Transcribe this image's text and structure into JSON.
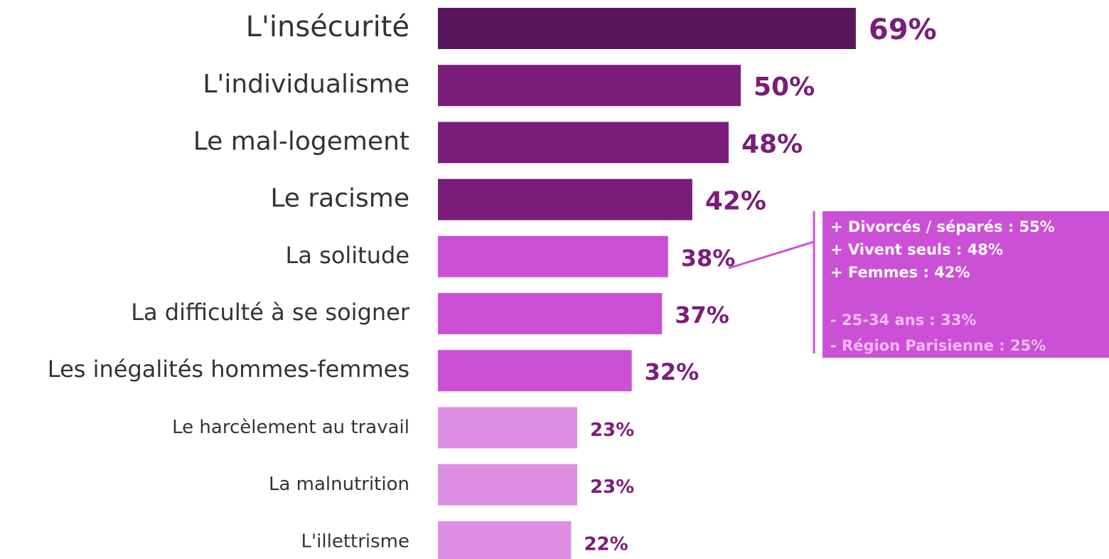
{
  "chart_data": {
    "type": "bar",
    "orientation": "horizontal",
    "categories": [
      "L'insécurité",
      "L'individualisme",
      "Le mal-logement",
      "Le racisme",
      "La solitude",
      "La difficulté à se soigner",
      "Les inégalités hommes-femmes",
      "Le harcèlement au travail",
      "La malnutrition",
      "L'illettrisme"
    ],
    "values": [
      69,
      50,
      48,
      42,
      38,
      37,
      32,
      23,
      23,
      22
    ],
    "value_labels": [
      "69%",
      "50%",
      "48%",
      "42%",
      "38%",
      "37%",
      "32%",
      "23%",
      "23%",
      "22%"
    ],
    "colors": [
      "#58175b",
      "#7a1d7a",
      "#7a1d7a",
      "#7a1d7a",
      "#cc50d6",
      "#cc50d6",
      "#cc50d6",
      "#de8ee3",
      "#de8ee3",
      "#de8ee3"
    ],
    "label_color": "#7a1d7a",
    "annotation": {
      "color": "#cc50d6",
      "positive_color": "#ffffff",
      "negative_color": "#f2bdf2",
      "positive": [
        "+ Divorcés / séparés : 55%",
        "+ Vivent seuls : 48%",
        "+ Femmes : 42%"
      ],
      "negative": [
        "- 25-34 ans : 33%",
        "- Région Parisienne : 25%"
      ]
    }
  }
}
